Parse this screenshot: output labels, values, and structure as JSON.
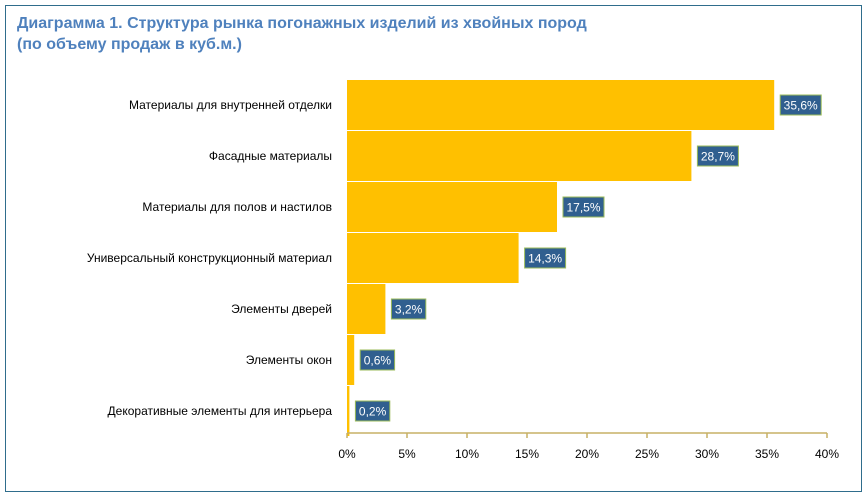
{
  "title_line1": "Диаграмма 1. Структура рынка погонажных изделий из хвойных пород",
  "title_line2": "(по объему продаж в куб.м.)",
  "colors": {
    "bar": "#ffc000",
    "label_box": "#305f8f",
    "label_border": "#9bbb59",
    "axis": "#c7b066",
    "title": "#4f81bd",
    "frame": "#2f6d8c"
  },
  "chart_data": {
    "type": "bar",
    "orientation": "horizontal",
    "title": "Диаграмма 1. Структура рынка погонажных изделий из хвойных пород (по объему продаж в куб.м.)",
    "categories": [
      "Материалы для внутренней отделки",
      "Фасадные материалы",
      "Материалы для полов и настилов",
      "Универсальный конструкционный материал",
      "Элементы дверей",
      "Элементы окон",
      "Декоративные элементы для интерьера"
    ],
    "values": [
      35.6,
      28.7,
      17.5,
      14.3,
      3.2,
      0.6,
      0.2
    ],
    "value_labels": [
      "35,6%",
      "28,7%",
      "17,5%",
      "14,3%",
      "3,2%",
      "0,6%",
      "0,2%"
    ],
    "xlim": [
      0,
      40
    ],
    "ticks": [
      0,
      5,
      10,
      15,
      20,
      25,
      30,
      35,
      40
    ],
    "tick_labels": [
      "0%",
      "5%",
      "10%",
      "15%",
      "20%",
      "25%",
      "30%",
      "35%",
      "40%"
    ],
    "xlabel": "",
    "ylabel": "",
    "grid": false,
    "legend": "none"
  }
}
